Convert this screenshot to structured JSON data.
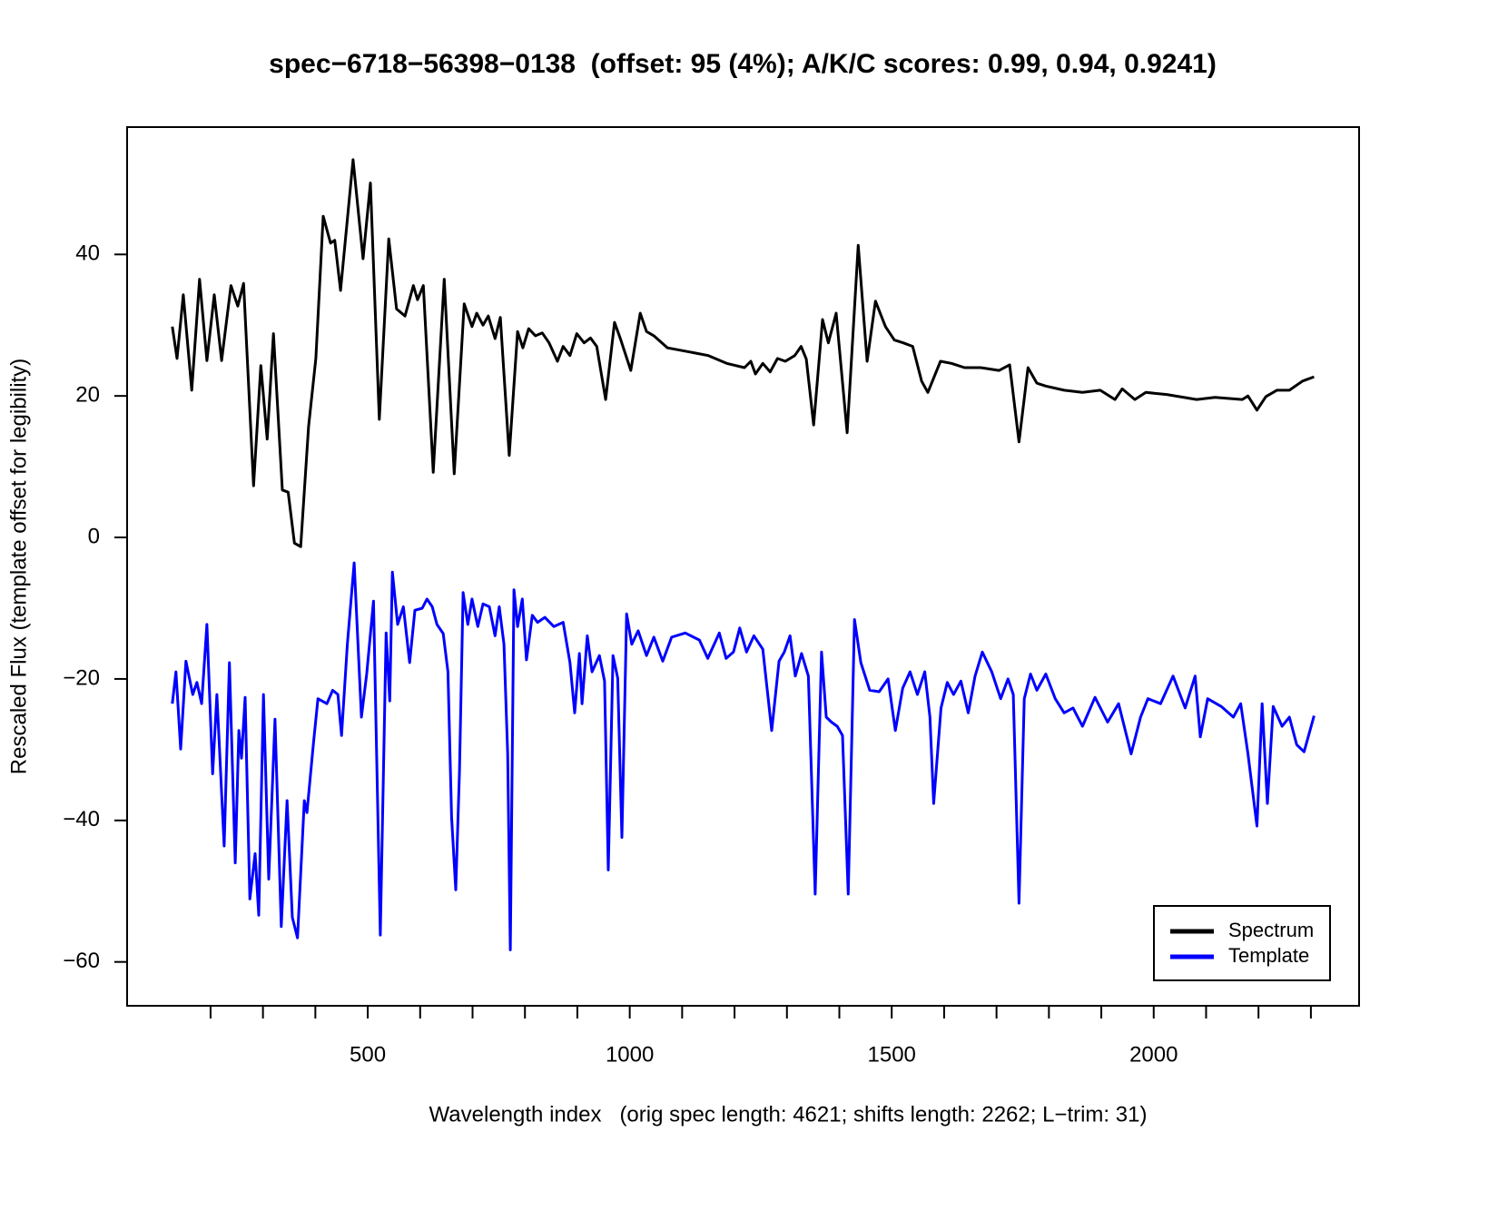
{
  "chart_data": {
    "type": "line",
    "title": "spec−6718−56398−0138  (offset: 95 (4%); A/K/C scores: 0.99, 0.94, 0.9241)",
    "x_label": "Wavelength index   (orig spec length: 4621; shifts length: 2262; L−trim: 31)",
    "y_label": "Rescaled Flux (template offset for legibility)",
    "xlim": [
      40.7,
      2392
    ],
    "ylim": [
      -66.2,
      58
    ],
    "xticks": [
      500,
      1000,
      1500,
      2000
    ],
    "xminor_ticks": [
      200,
      300,
      400,
      600,
      700,
      800,
      900,
      1100,
      1200,
      1300,
      1400,
      1600,
      1700,
      1800,
      1900,
      2100,
      2200,
      2300
    ],
    "yticks": [
      {
        "value": -60,
        "label": "−60"
      },
      {
        "value": -40,
        "label": "−40"
      },
      {
        "value": -20,
        "label": "−20"
      },
      0,
      20,
      40
    ],
    "grid": false,
    "legend_position": "bottom-right",
    "series": [
      {
        "name": "Spectrum",
        "color": "#000000",
        "x": [
          127,
          136,
          148,
          164,
          179,
          193,
          207,
          221,
          239,
          252,
          263,
          282,
          296,
          308,
          320,
          337,
          348,
          360,
          372,
          387,
          401,
          415,
          429,
          437,
          448,
          472,
          491,
          505,
          522,
          540,
          555,
          571,
          587,
          595,
          606,
          625,
          646,
          665,
          684,
          699,
          708,
          720,
          730,
          743,
          753,
          770,
          786,
          796,
          807,
          820,
          833,
          846,
          862,
          873,
          886,
          899,
          913,
          925,
          937,
          954,
          971,
          982,
          1002,
          1020,
          1032,
          1046,
          1072,
          1115,
          1150,
          1185,
          1219,
          1231,
          1240,
          1254,
          1268,
          1282,
          1297,
          1315,
          1327,
          1337,
          1351,
          1368,
          1379,
          1394,
          1415,
          1436,
          1453,
          1469,
          1488,
          1505,
          1522,
          1540,
          1557,
          1569,
          1593,
          1614,
          1639,
          1670,
          1705,
          1725,
          1743,
          1760,
          1777,
          1794,
          1829,
          1864,
          1898,
          1926,
          1940,
          1964,
          1985,
          2025,
          2082,
          2117,
          2169,
          2180,
          2197,
          2214,
          2235,
          2259,
          2284,
          2306
        ],
        "values": [
          29.8,
          25.3,
          34.3,
          20.8,
          36.5,
          25,
          34.3,
          25,
          35.6,
          32.7,
          35.9,
          7.3,
          24.3,
          13.9,
          28.8,
          6.7,
          6.4,
          -0.8,
          -1.3,
          15.7,
          25.3,
          45.4,
          41.6,
          42,
          34.9,
          53.4,
          39.4,
          50.1,
          16.7,
          42.2,
          32.3,
          31.3,
          35.6,
          33.6,
          35.6,
          9.2,
          36.5,
          9,
          33,
          29.8,
          31.7,
          30,
          31.3,
          28.1,
          31.1,
          11.6,
          29.1,
          26.8,
          29.5,
          28.5,
          28.9,
          27.5,
          24.9,
          27,
          25.7,
          28.8,
          27.5,
          28.2,
          27,
          19.5,
          30.4,
          28.1,
          23.6,
          31.7,
          29.1,
          28.5,
          26.8,
          26.2,
          25.7,
          24.6,
          24,
          24.9,
          23.1,
          24.6,
          23.4,
          25.3,
          24.9,
          25.7,
          27,
          25.2,
          15.9,
          30.8,
          27.5,
          31.7,
          14.8,
          41.3,
          24.9,
          33.4,
          29.8,
          27.9,
          27.5,
          27,
          22.1,
          20.5,
          24.9,
          24.6,
          24,
          24,
          23.6,
          24.4,
          13.5,
          24,
          21.8,
          21.4,
          20.8,
          20.5,
          20.8,
          19.5,
          21,
          19.5,
          20.5,
          20.2,
          19.5,
          19.8,
          19.5,
          20,
          18,
          19.9,
          20.8,
          20.8,
          22.1,
          22.7
        ]
      },
      {
        "name": "Template",
        "color": "#0000ff",
        "x": [
          127,
          134,
          143,
          153,
          166,
          174,
          183,
          193,
          204,
          212,
          226,
          236,
          247,
          254,
          259,
          266,
          275,
          285,
          292,
          301,
          311,
          323,
          335,
          346,
          356,
          366,
          379,
          384,
          396,
          405,
          422,
          433,
          443,
          450,
          461,
          474,
          488,
          498,
          511,
          524,
          535,
          542,
          547,
          557,
          568,
          580,
          590,
          604,
          613,
          623,
          632,
          644,
          653,
          660,
          668,
          675,
          682,
          691,
          699,
          710,
          720,
          732,
          743,
          751,
          760,
          767,
          772,
          779,
          786,
          795,
          803,
          814,
          824,
          838,
          855,
          873,
          886,
          895,
          904,
          909,
          919,
          928,
          942,
          952,
          959,
          968,
          977,
          985,
          994,
          1004,
          1016,
          1032,
          1046,
          1063,
          1080,
          1106,
          1133,
          1149,
          1171,
          1184,
          1198,
          1210,
          1223,
          1237,
          1254,
          1271,
          1285,
          1295,
          1306,
          1316,
          1328,
          1341,
          1354,
          1366,
          1375,
          1385,
          1396,
          1406,
          1417,
          1429,
          1441,
          1458,
          1476,
          1493,
          1507,
          1521,
          1535,
          1549,
          1563,
          1573,
          1580,
          1594,
          1606,
          1618,
          1632,
          1646,
          1659,
          1673,
          1691,
          1708,
          1722,
          1732,
          1743,
          1753,
          1765,
          1777,
          1794,
          1812,
          1829,
          1846,
          1864,
          1888,
          1912,
          1933,
          1957,
          1975,
          1989,
          2013,
          2037,
          2060,
          2079,
          2089,
          2103,
          2129,
          2152,
          2166,
          2180,
          2197,
          2207,
          2217,
          2228,
          2245,
          2259,
          2273,
          2287,
          2306
        ],
        "values": [
          -23.5,
          -19,
          -29.9,
          -17.5,
          -22.2,
          -20.5,
          -23.5,
          -12.3,
          -33.4,
          -22.2,
          -43.6,
          -17.7,
          -46,
          -27.3,
          -31.2,
          -22.6,
          -51.1,
          -44.7,
          -53.4,
          -22.2,
          -48.3,
          -25.7,
          -55,
          -37.2,
          -53.7,
          -56.6,
          -37.2,
          -38.9,
          -29.3,
          -22.8,
          -23.5,
          -21.6,
          -22.2,
          -28,
          -15.1,
          -3.6,
          -25.4,
          -19.3,
          -9,
          -56.2,
          -13.5,
          -23.1,
          -4.9,
          -12.3,
          -9.8,
          -17.7,
          -10.3,
          -10,
          -8.7,
          -9.8,
          -12.3,
          -13.6,
          -19,
          -39.5,
          -49.8,
          -33.1,
          -7.8,
          -12.3,
          -8.7,
          -12.6,
          -9.4,
          -9.8,
          -13.9,
          -9.8,
          -15.1,
          -30.6,
          -58.3,
          -7.4,
          -12.6,
          -8.7,
          -17.3,
          -11,
          -12,
          -11.3,
          -12.6,
          -12,
          -17.7,
          -24.8,
          -16.4,
          -23.5,
          -13.9,
          -19,
          -16.7,
          -20.3,
          -47,
          -16.7,
          -19.9,
          -42.4,
          -10.8,
          -15.1,
          -13.2,
          -16.7,
          -14.1,
          -17.5,
          -14.1,
          -13.5,
          -14.5,
          -17.1,
          -13.5,
          -17.1,
          -16.2,
          -12.8,
          -16.2,
          -13.9,
          -15.8,
          -27.3,
          -17.5,
          -16.2,
          -13.9,
          -19.6,
          -16.4,
          -19.6,
          -50.4,
          -16.2,
          -25.4,
          -26.1,
          -26.7,
          -28,
          -50.4,
          -11.6,
          -17.7,
          -21.6,
          -21.8,
          -20,
          -27.3,
          -21.3,
          -19,
          -22.2,
          -19,
          -25.4,
          -37.6,
          -24.1,
          -20.5,
          -22.2,
          -20.3,
          -24.8,
          -19.6,
          -16.2,
          -19,
          -22.8,
          -20,
          -22.2,
          -51.7,
          -22.8,
          -19.3,
          -21.6,
          -19.3,
          -22.8,
          -24.8,
          -24.1,
          -26.7,
          -22.6,
          -26.1,
          -23.5,
          -30.6,
          -25.4,
          -22.8,
          -23.5,
          -19.6,
          -24.1,
          -19.6,
          -28.2,
          -22.8,
          -23.9,
          -25.4,
          -23.5,
          -30.6,
          -40.8,
          -23.5,
          -37.6,
          -23.9,
          -26.7,
          -25.4,
          -29.3,
          -30.3,
          -25.2
        ]
      }
    ]
  }
}
